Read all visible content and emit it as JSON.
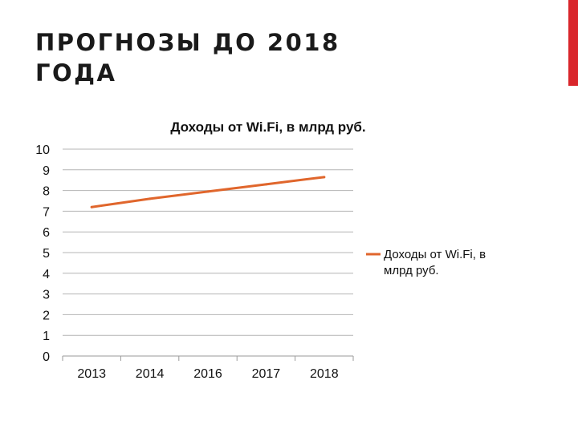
{
  "slide": {
    "title_line1": "ПРОГНОЗЫ ДО 2018",
    "title_line2": "ГОДА",
    "accent_color": "#d9262b"
  },
  "chart_data": {
    "type": "line",
    "title": "Доходы от Wi.Fi, в млрд руб.",
    "categories": [
      "2013",
      "2014",
      "2016",
      "2017",
      "2018"
    ],
    "series": [
      {
        "name": "Доходы от Wi.Fi, в млрд руб.",
        "values": [
          7.2,
          7.6,
          7.95,
          8.3,
          8.65
        ],
        "color": "#e0662c"
      }
    ],
    "ylim": [
      0,
      10
    ],
    "yticks": [
      0,
      1,
      2,
      3,
      4,
      5,
      6,
      7,
      8,
      9,
      10
    ],
    "grid": true,
    "legend": "right",
    "legend_lines": [
      "Доходы от Wi.Fi, в",
      "млрд руб."
    ]
  }
}
